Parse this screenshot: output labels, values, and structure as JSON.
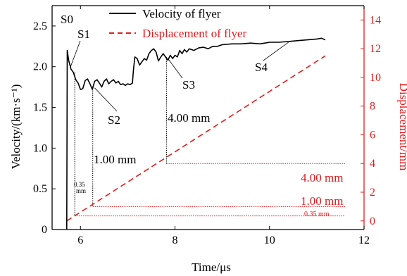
{
  "chart_data": {
    "type": "line",
    "xlabel": "Time/μs",
    "ylabel_left": "Velocity/(km·s⁻¹)",
    "ylabel_right": "Displacement/mm",
    "xlim": [
      5.4,
      12
    ],
    "ylim_left": [
      0,
      2.75
    ],
    "ylim_right": [
      -0.6,
      15
    ],
    "x_ticks": [
      6,
      8,
      10,
      12
    ],
    "y_ticks_left": [
      0,
      0.5,
      1.0,
      1.5,
      2.0,
      2.5
    ],
    "y_ticks_right": [
      0,
      2,
      4,
      6,
      8,
      10,
      12,
      14
    ],
    "colors": {
      "velocity": "#000000",
      "displacement": "#e41a1c"
    },
    "legend": {
      "position": "top",
      "entries": [
        "Velocity of flyer",
        "Displacement of flyer"
      ]
    },
    "series": [
      {
        "name": "Velocity of flyer",
        "axis": "left",
        "style": "solid",
        "points": [
          [
            5.71,
            0.0
          ],
          [
            5.72,
            2.2
          ],
          [
            5.75,
            2.08
          ],
          [
            5.8,
            1.97
          ],
          [
            5.85,
            1.93
          ],
          [
            5.9,
            1.84
          ],
          [
            5.95,
            1.8
          ],
          [
            6.0,
            1.72
          ],
          [
            6.05,
            1.73
          ],
          [
            6.1,
            1.83
          ],
          [
            6.15,
            1.85
          ],
          [
            6.2,
            1.79
          ],
          [
            6.25,
            1.72
          ],
          [
            6.3,
            1.82
          ],
          [
            6.35,
            1.84
          ],
          [
            6.4,
            1.8
          ],
          [
            6.45,
            1.75
          ],
          [
            6.5,
            1.82
          ],
          [
            6.55,
            1.85
          ],
          [
            6.6,
            1.79
          ],
          [
            6.65,
            1.82
          ],
          [
            6.7,
            1.84
          ],
          [
            6.75,
            1.8
          ],
          [
            6.8,
            1.82
          ],
          [
            6.85,
            1.78
          ],
          [
            6.9,
            1.79
          ],
          [
            6.95,
            1.77
          ],
          [
            7.0,
            1.79
          ],
          [
            7.05,
            1.78
          ],
          [
            7.1,
            1.8
          ],
          [
            7.12,
            1.95
          ],
          [
            7.15,
            2.12
          ],
          [
            7.2,
            2.1
          ],
          [
            7.25,
            2.02
          ],
          [
            7.3,
            2.06
          ],
          [
            7.35,
            2.1
          ],
          [
            7.4,
            2.08
          ],
          [
            7.45,
            2.16
          ],
          [
            7.5,
            2.2
          ],
          [
            7.55,
            2.22
          ],
          [
            7.6,
            2.18
          ],
          [
            7.65,
            2.07
          ],
          [
            7.7,
            2.12
          ],
          [
            7.75,
            2.16
          ],
          [
            7.8,
            2.12
          ],
          [
            7.85,
            2.08
          ],
          [
            7.9,
            2.14
          ],
          [
            7.95,
            2.1
          ],
          [
            8.0,
            2.14
          ],
          [
            8.05,
            2.12
          ],
          [
            8.1,
            2.2
          ],
          [
            8.15,
            2.16
          ],
          [
            8.2,
            2.21
          ],
          [
            8.25,
            2.18
          ],
          [
            8.3,
            2.22
          ],
          [
            8.4,
            2.2
          ],
          [
            8.5,
            2.23
          ],
          [
            8.6,
            2.24
          ],
          [
            8.7,
            2.22
          ],
          [
            8.8,
            2.25
          ],
          [
            8.9,
            2.25
          ],
          [
            9.0,
            2.27
          ],
          [
            9.2,
            2.28
          ],
          [
            9.4,
            2.28
          ],
          [
            9.6,
            2.29
          ],
          [
            9.8,
            2.28
          ],
          [
            10.0,
            2.3
          ],
          [
            10.2,
            2.3
          ],
          [
            10.4,
            2.31
          ],
          [
            10.6,
            2.32
          ],
          [
            10.8,
            2.33
          ],
          [
            11.0,
            2.34
          ],
          [
            11.1,
            2.35
          ],
          [
            11.18,
            2.33
          ]
        ]
      },
      {
        "name": "Displacement of flyer",
        "axis": "right",
        "style": "dashed",
        "points": [
          [
            5.71,
            0.0
          ],
          [
            11.18,
            11.5
          ]
        ]
      }
    ],
    "reference_lines": [
      {
        "label": "0.35 mm",
        "y_mm": 0.35,
        "x_start": 5.88,
        "x_end": 11.6
      },
      {
        "label": "1.00 mm",
        "y_mm": 1.0,
        "x_start": 6.26,
        "x_end": 11.6
      },
      {
        "label": "4.00 mm",
        "y_mm": 4.0,
        "x_start": 7.82,
        "x_end": 11.6
      }
    ],
    "markers": [
      {
        "label": "S0",
        "x": 5.72,
        "y": 2.2
      },
      {
        "label": "S1",
        "x": 5.79,
        "y": 2.0
      },
      {
        "label": "S2",
        "x": 6.3,
        "y": 1.74
      },
      {
        "label": "S3",
        "x": 7.85,
        "y": 2.1
      },
      {
        "label": "S4",
        "x": 10.4,
        "y": 2.3
      }
    ],
    "annotations": {
      "small_035": "0.35",
      "small_mm": "mm",
      "mid_100": "1.00 mm",
      "mid_400": "4.00 mm"
    }
  }
}
